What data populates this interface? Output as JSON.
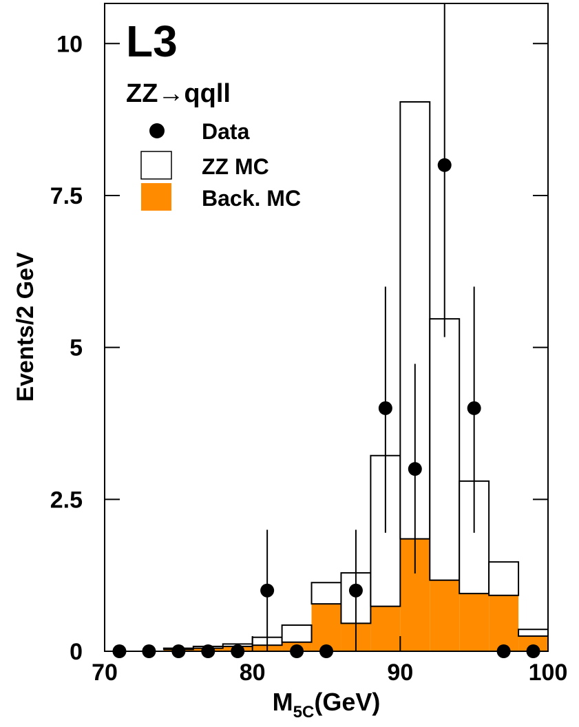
{
  "chart_data": {
    "type": "histogram",
    "experiment_label": "L3",
    "channel_label": "ZZ→qqll",
    "y_label": "Events/2 GeV",
    "x_label": {
      "symbol": "M",
      "subscript": "5C",
      "unit": "(GeV)"
    },
    "bins": [
      70,
      72,
      74,
      76,
      78,
      80,
      82,
      84,
      86,
      88,
      90,
      92,
      94,
      96,
      98,
      100
    ],
    "series": [
      {
        "name": "Back. MC",
        "color": "#ff8c00",
        "values": [
          0,
          0,
          0.03,
          0.05,
          0.08,
          0.1,
          0.15,
          0.78,
          0.46,
          0.74,
          1.85,
          1.17,
          0.95,
          0.92,
          0.25
        ]
      },
      {
        "name": "ZZ MC",
        "color": "#ffffff",
        "values": [
          0,
          0,
          0.02,
          0.03,
          0.04,
          0.13,
          0.28,
          0.35,
          0.83,
          2.48,
          7.19,
          4.3,
          1.85,
          0.55,
          0.11
        ]
      }
    ],
    "data": {
      "name": "Data",
      "color": "#000000",
      "x": [
        71,
        73,
        75,
        77,
        79,
        81,
        83,
        85,
        87,
        89,
        91,
        93,
        95,
        97,
        99
      ],
      "values": [
        0,
        0,
        0,
        0,
        0,
        1,
        0,
        0,
        1,
        4,
        3,
        8,
        4,
        0,
        0
      ],
      "err_low": [
        null,
        null,
        null,
        null,
        null,
        1,
        null,
        null,
        1,
        2.05,
        1.72,
        2.83,
        2.05,
        null,
        null
      ],
      "err_high": [
        null,
        null,
        null,
        null,
        null,
        1,
        null,
        null,
        1,
        2,
        1.73,
        2.83,
        2,
        null,
        null
      ]
    },
    "xlim": [
      70,
      100
    ],
    "xticks": [
      70,
      80,
      90,
      100
    ],
    "ylim": [
      0,
      10.66
    ],
    "yticks": [
      0,
      2.5,
      5,
      7.5,
      10
    ]
  }
}
